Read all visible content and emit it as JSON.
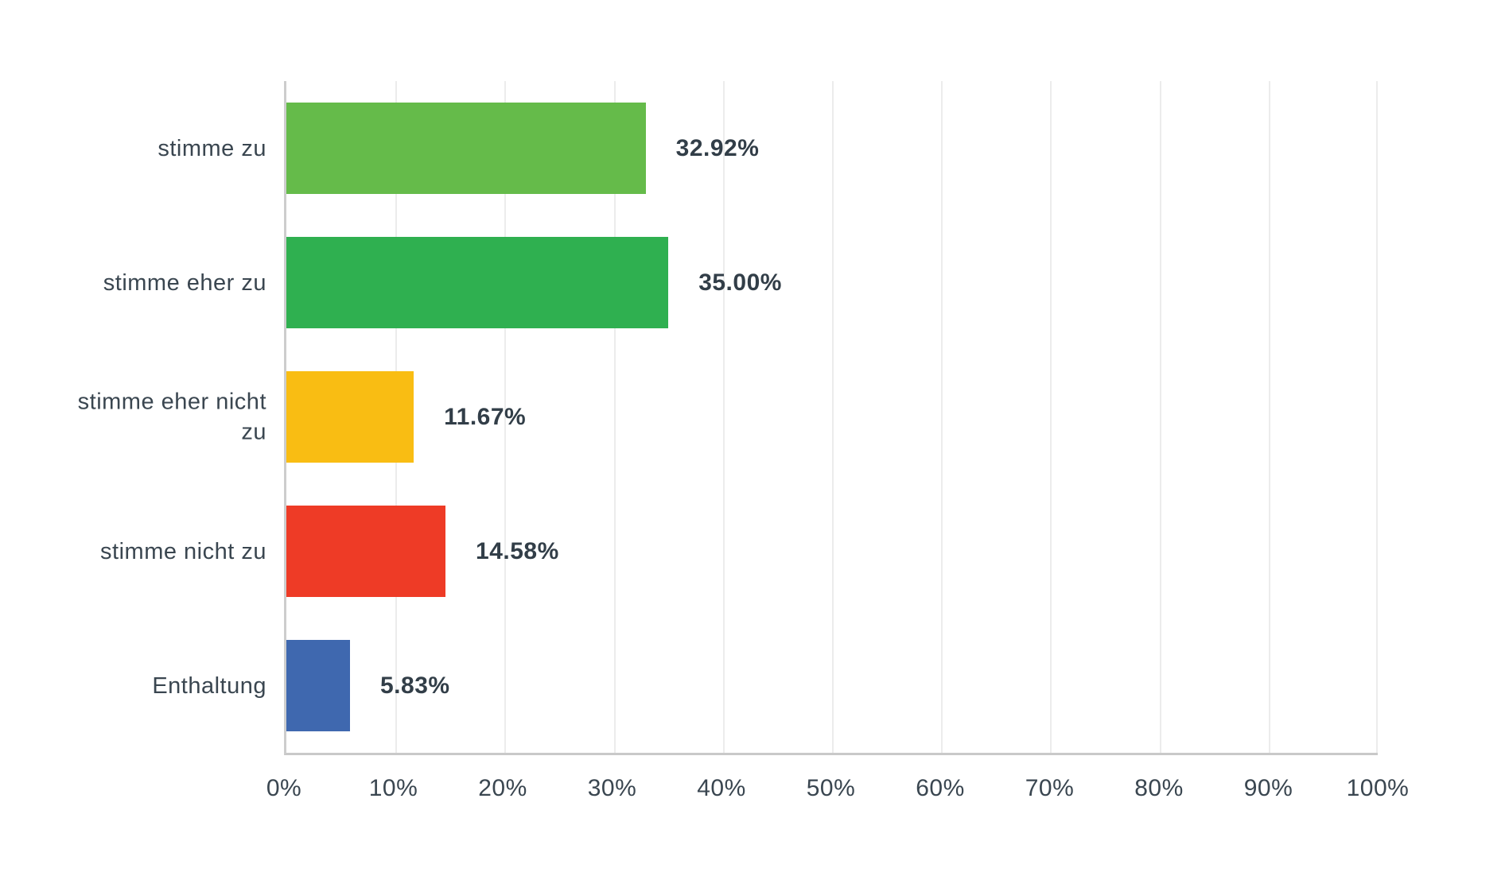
{
  "chart_data": {
    "type": "bar",
    "orientation": "horizontal",
    "title": "",
    "categories": [
      "stimme zu",
      "stimme eher zu",
      "stimme eher nicht zu",
      "stimme nicht zu",
      "Enthaltung"
    ],
    "values": [
      32.92,
      35.0,
      11.67,
      14.58,
      5.83
    ],
    "value_labels": [
      "32.92%",
      "35.00%",
      "11.67%",
      "14.58%",
      "5.83%"
    ],
    "bar_colors": [
      "#65BB4A",
      "#2FB050",
      "#F9BD13",
      "#EE3B26",
      "#3F68AF"
    ],
    "xlabel": "",
    "ylabel": "",
    "xlim": [
      0,
      100
    ],
    "x_tick_step": 10,
    "x_tick_labels": [
      "0%",
      "10%",
      "20%",
      "30%",
      "40%",
      "50%",
      "60%",
      "70%",
      "80%",
      "90%",
      "100%"
    ],
    "grid": "vertical gridlines every 10%",
    "legend": "none",
    "colors": {
      "text": "#323E48",
      "axis_line": "#CDCDCD",
      "gridline": "#ECECEC",
      "background": "#FFFFFF"
    }
  }
}
